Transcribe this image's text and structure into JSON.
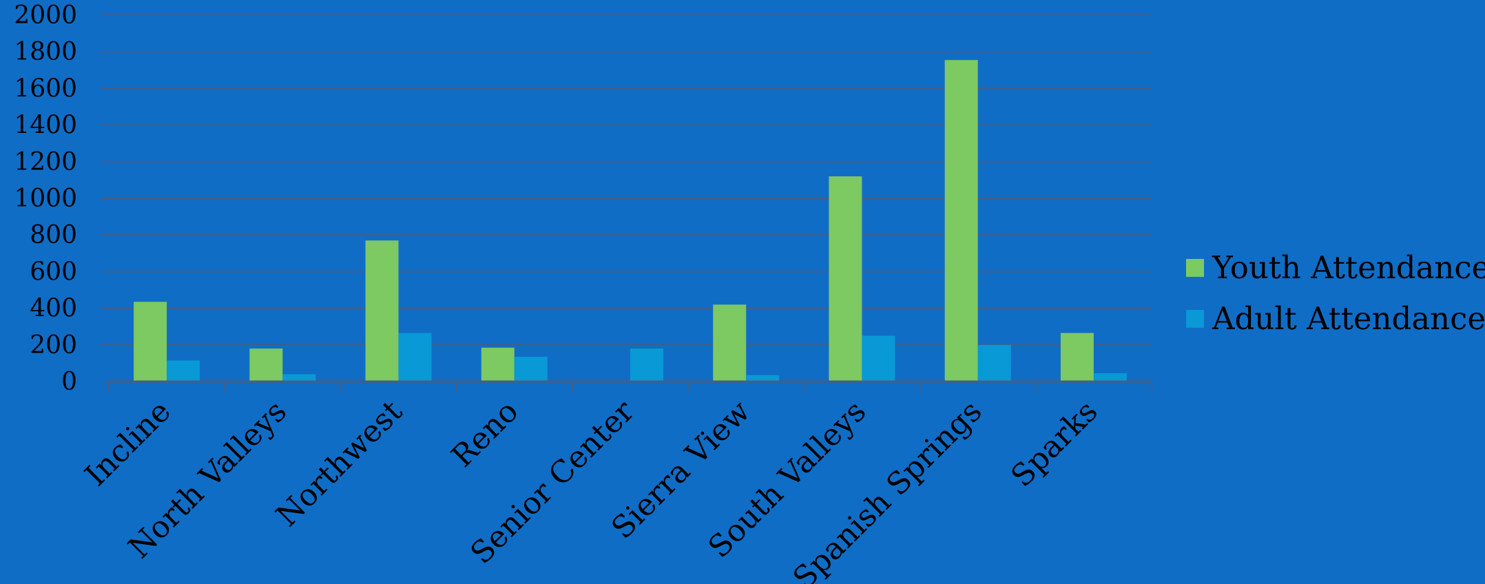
{
  "chart_data": {
    "type": "bar",
    "categories": [
      "Incline",
      "North Valleys",
      "Northwest",
      "Reno",
      "Senior Center",
      "Sierra View",
      "South Valleys",
      "Spanish Springs",
      "Sparks"
    ],
    "series": [
      {
        "name": "Youth Attendance",
        "color": "#7dc962",
        "values": [
          435,
          180,
          770,
          185,
          0,
          420,
          1120,
          1755,
          265
        ]
      },
      {
        "name": "Adult Attendance",
        "color": "#0899d6",
        "values": [
          115,
          40,
          265,
          135,
          180,
          35,
          250,
          200,
          45
        ]
      }
    ],
    "y_ticks": [
      "0",
      "200",
      "400",
      "600",
      "800",
      "1000",
      "1200",
      "1400",
      "1600",
      "1800",
      "2000"
    ],
    "ylim": [
      0,
      2000
    ],
    "grid": true,
    "legend_position": "right",
    "colors": {
      "background": "#106dc6",
      "gridline": "#4a5d80",
      "text": "#000000"
    }
  }
}
